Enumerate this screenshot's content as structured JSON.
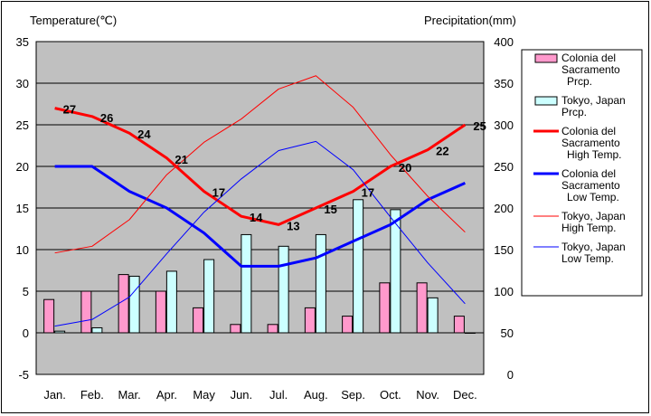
{
  "chart_data": {
    "type": "bar-line-combo",
    "left_axis_label": "Temperature(℃)",
    "right_axis_label": "Precipitation(mm)",
    "left_ylim": [
      -5,
      35
    ],
    "left_ticks": [
      -5,
      0,
      5,
      10,
      15,
      20,
      25,
      30,
      35
    ],
    "right_ylim": [
      0,
      400
    ],
    "right_ticks": [
      0,
      50,
      100,
      150,
      200,
      250,
      300,
      350,
      400
    ],
    "grid": true,
    "legend_position": "right",
    "categories": [
      "Jan.",
      "Feb.",
      "Mar.",
      "Apr.",
      "May",
      "Jun.",
      "Jul.",
      "Aug.",
      "Sep.",
      "Oct.",
      "Nov.",
      "Dec."
    ],
    "bar_series": [
      {
        "name": "Colonia del Sacramento Prcp.",
        "legend_lines": [
          "Colonia del",
          "Sacramento",
          "Prcp."
        ],
        "color": "#ff99cc",
        "axis": "left",
        "values": [
          4,
          5,
          7,
          5,
          3,
          1,
          1,
          3,
          2,
          6,
          6,
          2
        ]
      },
      {
        "name": "Tokyo, Japan Prcp.",
        "legend_lines": [
          "Tokyo, Japan",
          "Prcp."
        ],
        "color": "#ccffff",
        "axis": "left",
        "values": [
          0.2,
          0.6,
          6.8,
          7.4,
          8.8,
          11.8,
          10.4,
          11.8,
          16,
          14.8,
          4.2,
          0
        ]
      }
    ],
    "line_series": [
      {
        "name": "Colonia del Sacramento High Temp.",
        "legend_lines": [
          "Colonia del",
          "Sacramento",
          "High Temp."
        ],
        "color": "#ff0000",
        "width": 3,
        "axis": "left",
        "values": [
          27,
          26,
          24,
          21,
          17,
          14,
          13,
          15,
          17,
          20,
          22,
          25
        ],
        "labels": true
      },
      {
        "name": "Colonia del Sacramento Low Temp.",
        "legend_lines": [
          "Colonia del",
          "Sacramento",
          "Low Temp."
        ],
        "color": "#0000ff",
        "width": 3,
        "axis": "left",
        "values": [
          20,
          20,
          17,
          15,
          12,
          8,
          8,
          9,
          11,
          13,
          16,
          18
        ],
        "labels": false
      },
      {
        "name": "Tokyo, Japan High Temp.",
        "legend_lines": [
          "Tokyo, Japan",
          "High Temp."
        ],
        "color": "#ff0000",
        "width": 1,
        "axis": "left",
        "values": [
          9.6,
          10.4,
          13.6,
          19,
          22.9,
          25.7,
          29.3,
          30.9,
          27.1,
          21.4,
          16.4,
          12.1
        ],
        "labels": false
      },
      {
        "name": "Tokyo, Japan Low Temp.",
        "legend_lines": [
          "Tokyo, Japan",
          "Low Temp."
        ],
        "color": "#0000ff",
        "width": 1,
        "axis": "left",
        "values": [
          0.8,
          1.6,
          4.3,
          9.5,
          14.5,
          18.5,
          21.9,
          23,
          19.6,
          13.9,
          8.4,
          3.5
        ],
        "labels": false
      }
    ]
  }
}
